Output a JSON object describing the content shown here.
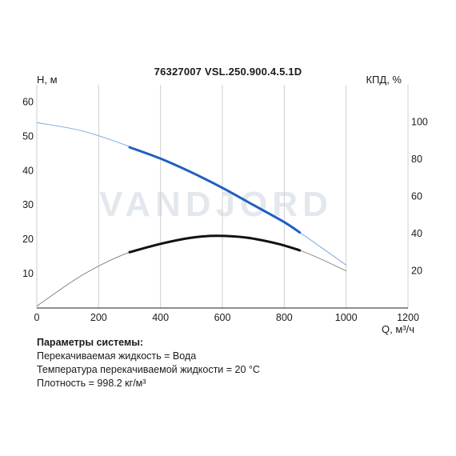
{
  "chart_data": {
    "type": "line",
    "title": "76327007 VSL.250.900.4.5.1D",
    "ylabel_left": "H, м",
    "ylabel_right": "КПД, %",
    "xlabel": "Q, м³/ч",
    "xlim": [
      0,
      1200
    ],
    "ylim_left": [
      0,
      65
    ],
    "ylim_right": [
      0,
      120
    ],
    "x_ticks": [
      "0",
      "200",
      "400",
      "600",
      "800",
      "1000",
      "1200"
    ],
    "y_ticks_left": [
      "10",
      "20",
      "30",
      "40",
      "50",
      "60"
    ],
    "y_ticks_right": [
      "20",
      "40",
      "60",
      "80",
      "100"
    ],
    "watermark": "VANDJORD",
    "series": [
      {
        "axis": "left",
        "color": "#7aaae0",
        "x": [
          0,
          150,
          300,
          450,
          600,
          750,
          850,
          1000
        ],
        "y": [
          54,
          51.5,
          47,
          41.5,
          35,
          27.5,
          22,
          12.5
        ]
      },
      {
        "axis": "left",
        "color": "#1f5fbf",
        "x": [
          300,
          400,
          500,
          600,
          700,
          800,
          850
        ],
        "y": [
          46.8,
          43.5,
          39.5,
          35,
          30,
          25,
          22
        ]
      },
      {
        "axis": "right",
        "color": "#888888",
        "x": [
          0,
          150,
          300,
          450,
          580,
          700,
          850,
          1000
        ],
        "y": [
          1,
          18,
          30,
          36.5,
          38.5,
          37,
          31,
          20
        ]
      },
      {
        "axis": "right",
        "color": "#111111",
        "x": [
          300,
          400,
          500,
          580,
          680,
          780,
          850
        ],
        "y": [
          30,
          34.5,
          37.8,
          38.8,
          37.8,
          34.5,
          31
        ]
      }
    ]
  },
  "params": {
    "heading": "Параметры системы:",
    "lines": [
      "Перекачиваемая жидкость = Вода",
      "Температура перекачиваемой жидкости = 20 °C",
      "Плотность = 998.2 кг/м³"
    ]
  }
}
